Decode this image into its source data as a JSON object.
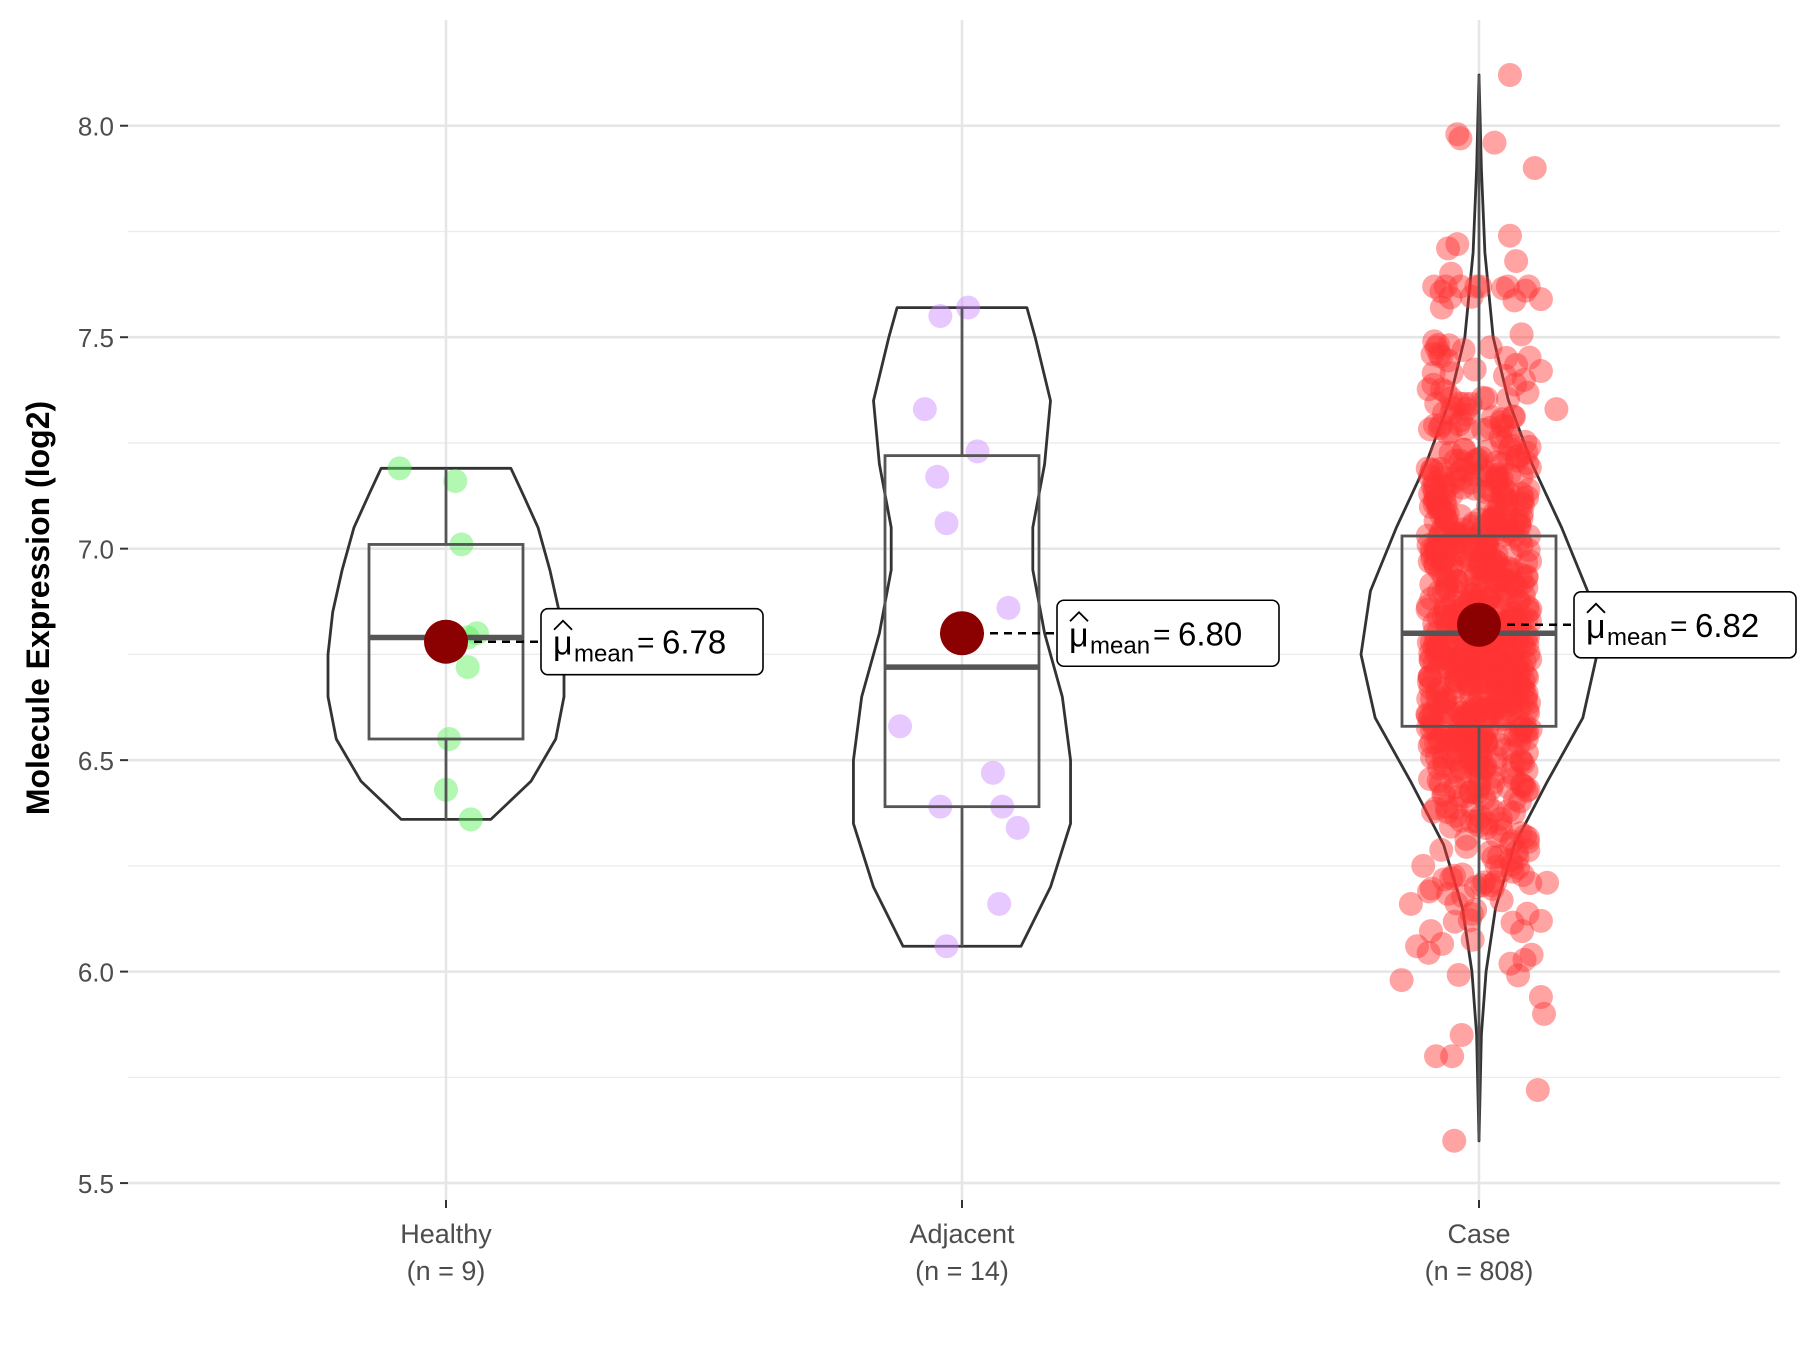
{
  "chart_data": {
    "type": "violin",
    "ylabel": "Molecule Expression (log2)",
    "xlabel": "",
    "ylim": [
      5.46,
      8.25
    ],
    "yticks": [
      5.5,
      6.0,
      6.5,
      7.0,
      7.5,
      8.0
    ],
    "ytick_labels": [
      "5.5",
      "6.0",
      "6.5",
      "7.0",
      "7.5",
      "8.0"
    ],
    "grid": true,
    "legend": "none",
    "categories": [
      {
        "label": "Healthy",
        "n_label": "(n = 9)",
        "color": "#55ee55",
        "box": {
          "q1": 6.55,
          "median": 6.79,
          "q3": 7.01,
          "whisker_low": 6.36,
          "whisker_high": 7.19
        },
        "violin_range": [
          6.36,
          7.19
        ],
        "violin_profile": [
          [
            6.36,
            0.38
          ],
          [
            6.45,
            0.72
          ],
          [
            6.55,
            0.93
          ],
          [
            6.65,
            1.0
          ],
          [
            6.75,
            1.0
          ],
          [
            6.85,
            0.96
          ],
          [
            6.95,
            0.88
          ],
          [
            7.05,
            0.78
          ],
          [
            7.13,
            0.65
          ],
          [
            7.19,
            0.55
          ]
        ],
        "mean": 6.78,
        "mean_label": "6.78",
        "points": [
          [
            -0.15,
            7.19
          ],
          [
            0.03,
            7.16
          ],
          [
            0.05,
            7.01
          ],
          [
            0.1,
            6.8
          ],
          [
            0.07,
            6.72
          ],
          [
            0.01,
            6.55
          ],
          [
            0.0,
            6.43
          ],
          [
            0.08,
            6.36
          ],
          [
            0.07,
            6.79
          ]
        ]
      },
      {
        "label": "Adjacent",
        "n_label": "(n = 14)",
        "color": "#cc88ff",
        "box": {
          "q1": 6.39,
          "median": 6.72,
          "q3": 7.22,
          "whisker_low": 6.06,
          "whisker_high": 7.57
        },
        "violin_range": [
          6.06,
          7.57
        ],
        "violin_profile": [
          [
            6.06,
            0.5
          ],
          [
            6.2,
            0.75
          ],
          [
            6.35,
            0.92
          ],
          [
            6.5,
            0.92
          ],
          [
            6.65,
            0.85
          ],
          [
            6.8,
            0.7
          ],
          [
            6.95,
            0.6
          ],
          [
            7.05,
            0.6
          ],
          [
            7.2,
            0.7
          ],
          [
            7.35,
            0.75
          ],
          [
            7.5,
            0.62
          ],
          [
            7.57,
            0.55
          ]
        ],
        "mean": 6.8,
        "mean_label": "6.80",
        "points": [
          [
            0.02,
            7.57
          ],
          [
            -0.07,
            7.55
          ],
          [
            -0.12,
            7.33
          ],
          [
            0.05,
            7.23
          ],
          [
            -0.08,
            7.17
          ],
          [
            -0.05,
            7.06
          ],
          [
            0.15,
            6.86
          ],
          [
            -0.2,
            6.58
          ],
          [
            0.1,
            6.47
          ],
          [
            -0.07,
            6.39
          ],
          [
            0.13,
            6.39
          ],
          [
            0.18,
            6.34
          ],
          [
            0.12,
            6.16
          ],
          [
            -0.05,
            6.06
          ]
        ]
      },
      {
        "label": "Case",
        "n_label": "(n = 808)",
        "color": "#ff3333",
        "box": {
          "q1": 6.58,
          "median": 6.8,
          "q3": 7.03,
          "whisker_low": 5.6,
          "whisker_high": 8.12
        },
        "violin_range": [
          5.6,
          8.12
        ],
        "violin_profile": [
          [
            5.6,
            0.0
          ],
          [
            5.85,
            0.02
          ],
          [
            6.0,
            0.06
          ],
          [
            6.15,
            0.14
          ],
          [
            6.3,
            0.3
          ],
          [
            6.45,
            0.58
          ],
          [
            6.6,
            0.88
          ],
          [
            6.75,
            1.0
          ],
          [
            6.9,
            0.92
          ],
          [
            7.05,
            0.7
          ],
          [
            7.2,
            0.45
          ],
          [
            7.35,
            0.25
          ],
          [
            7.5,
            0.12
          ],
          [
            7.7,
            0.05
          ],
          [
            7.9,
            0.02
          ],
          [
            8.12,
            0.0
          ]
        ],
        "mean": 6.82,
        "mean_label": "6.82",
        "n": 808,
        "points": [
          [
            0.1,
            8.12
          ],
          [
            -0.07,
            7.98
          ],
          [
            -0.06,
            7.97
          ],
          [
            0.05,
            7.96
          ],
          [
            0.18,
            7.9
          ],
          [
            0.1,
            7.74
          ],
          [
            -0.1,
            7.71
          ],
          [
            -0.07,
            7.72
          ],
          [
            0.12,
            7.68
          ],
          [
            -0.09,
            7.65
          ],
          [
            0.15,
            7.61
          ],
          [
            0.2,
            7.59
          ],
          [
            -0.12,
            7.57
          ],
          [
            -0.15,
            7.46
          ],
          [
            0.2,
            7.42
          ],
          [
            0.25,
            7.33
          ],
          [
            -0.2,
            6.06
          ],
          [
            -0.25,
            5.98
          ],
          [
            0.17,
            6.04
          ],
          [
            0.2,
            5.94
          ],
          [
            0.21,
            5.9
          ],
          [
            0.19,
            5.72
          ],
          [
            -0.08,
            5.6
          ],
          [
            -0.22,
            6.16
          ],
          [
            0.22,
            6.21
          ],
          [
            0.2,
            6.12
          ],
          [
            -0.18,
            6.25
          ]
        ]
      }
    ]
  }
}
